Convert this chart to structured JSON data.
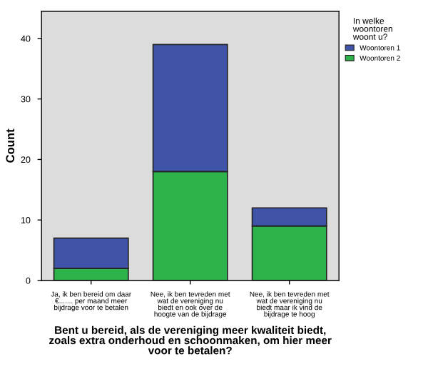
{
  "chart_data": {
    "type": "bar",
    "stacked": true,
    "xlabel": "Bent u bereid, als de vereniging meer kwaliteit biedt, zoals extra onderhoud en schoonmaken, om hier meer voor te betalen?",
    "ylabel": "Count",
    "legend_title": "In welke woontoren woont u?",
    "legend": "right",
    "grid": false,
    "categories": [
      "Ja, ik ben bereid om daar €....... per maand meer bijdrage voor te betalen",
      "Nee, ik ben tevreden met wat de vereniging nu biedt en ook over de hoogte van de bijdrage",
      "Nee, ik ben tevreden met wat de vereniging nu biedt maar ik vind de bijdrage te hoog"
    ],
    "series": [
      {
        "name": "Woontoren 2",
        "color": "#2db34a",
        "values": [
          2,
          18,
          9
        ]
      },
      {
        "name": "Woontoren 1",
        "color": "#3f54a8",
        "values": [
          5,
          21,
          3
        ]
      }
    ],
    "ylim": [
      0,
      44.5
    ],
    "yticks": [
      0,
      10,
      20,
      30,
      40
    ]
  }
}
